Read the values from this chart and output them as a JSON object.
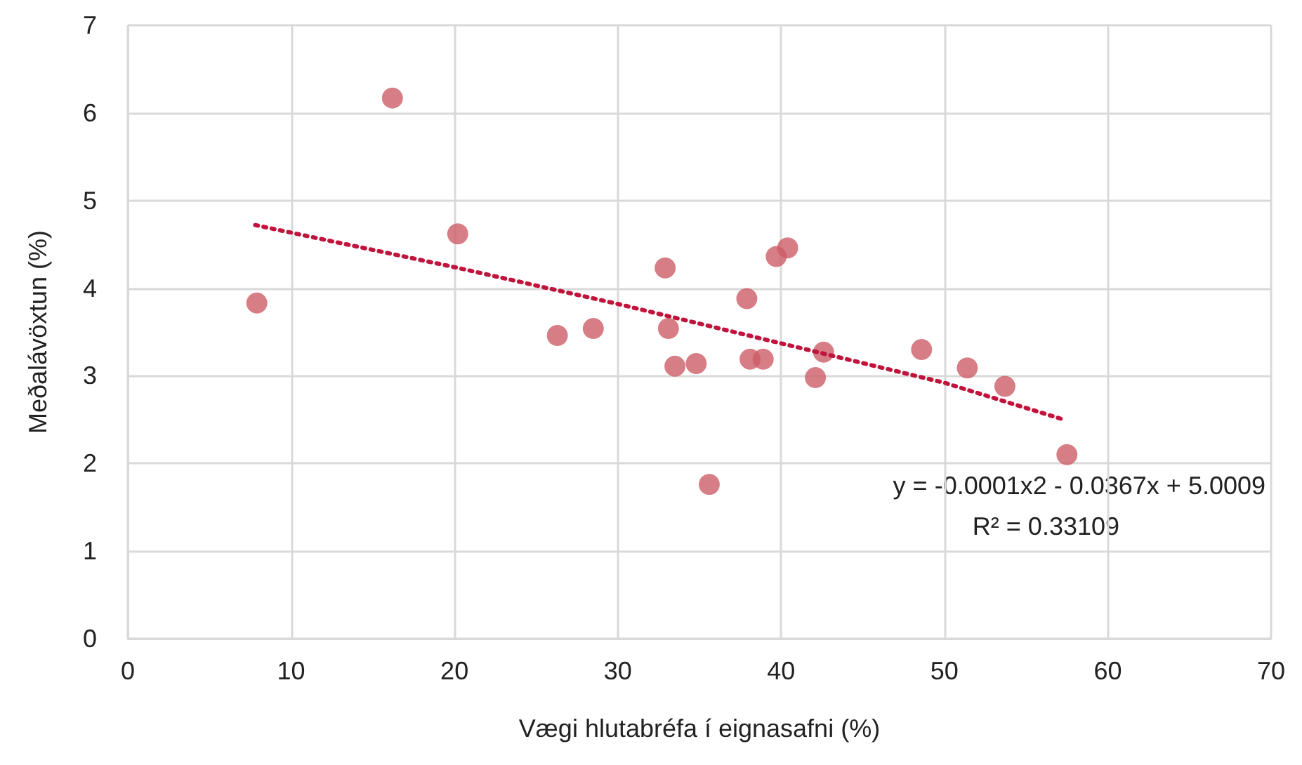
{
  "chart_data": {
    "type": "scatter",
    "xlabel": "Vægi hlutabréfa í eignasafni (%)",
    "ylabel": "Meðalávöxtun (%)",
    "series": [
      {
        "color": "#cd5c66",
        "x": [
          7.9,
          16.2,
          20.2,
          26.3,
          28.5,
          32.9,
          33.1,
          33.5,
          34.8,
          35.6,
          37.9,
          38.1,
          38.9,
          39.7,
          40.4,
          42.1,
          42.6,
          48.6,
          51.4,
          53.7,
          57.5
        ],
        "values": [
          3.83,
          6.17,
          4.62,
          3.46,
          3.54,
          4.23,
          3.54,
          3.11,
          3.14,
          1.76,
          3.88,
          3.19,
          3.19,
          4.36,
          4.46,
          2.98,
          3.27,
          3.3,
          3.09,
          2.88,
          2.1
        ]
      },
      {
        "type": "line",
        "color": "#c0143c",
        "line_style": "dotted",
        "marker": "none",
        "x": [
          7.8,
          20,
          30,
          40,
          50,
          57.3
        ],
        "values": [
          4.72,
          4.24,
          3.82,
          3.37,
          2.92,
          2.5
        ]
      }
    ],
    "xlim": [
      0,
      70
    ],
    "xticks": [
      0,
      10,
      20,
      30,
      40,
      50,
      60,
      70
    ],
    "ylim": [
      0,
      7
    ],
    "yticks": [
      0,
      1,
      2,
      3,
      4,
      5,
      6,
      7
    ],
    "grid": true,
    "marker": "circle",
    "annotations": [
      "y = -0.0001x2 - 0.0367x + 5.0009",
      "R² = 0.33109"
    ]
  }
}
